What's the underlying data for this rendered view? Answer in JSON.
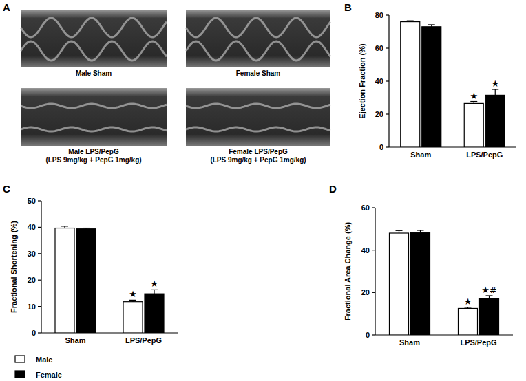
{
  "images": {
    "panel": "A",
    "items": [
      {
        "caption": [
          "Male Sham"
        ]
      },
      {
        "caption": [
          "Female Sham"
        ]
      },
      {
        "caption": [
          "Male LPS/PepG",
          "(LPS 9mg/kg + PepG 1mg/kg)"
        ]
      },
      {
        "caption": [
          "Female LPS/PepG",
          "(LPS 9mg/kg + PepG 1mg/kg)"
        ]
      }
    ]
  },
  "chart_data": [
    {
      "panel": "B",
      "type": "bar",
      "ylabel": "Ejection Fraction (%)",
      "categories": [
        "Sham",
        "LPS/PepG"
      ],
      "series": [
        {
          "name": "Male",
          "color": "#ffffff",
          "values": [
            76,
            26.5
          ],
          "errors": [
            0.6,
            1.2
          ],
          "annotations": [
            null,
            "★"
          ]
        },
        {
          "name": "Female",
          "color": "#000000",
          "values": [
            73,
            31.5
          ],
          "errors": [
            1.2,
            3.5
          ],
          "annotations": [
            null,
            "★"
          ]
        }
      ],
      "ylim": [
        0,
        80
      ],
      "yticks": [
        0,
        20,
        40,
        60,
        80
      ]
    },
    {
      "panel": "C",
      "type": "bar",
      "ylabel": "Fractional Shortening (%)",
      "categories": [
        "Sham",
        "LPS/PepG"
      ],
      "series": [
        {
          "name": "Male",
          "color": "#ffffff",
          "values": [
            39.7,
            11.8
          ],
          "errors": [
            0.7,
            0.6
          ],
          "annotations": [
            null,
            "★"
          ]
        },
        {
          "name": "Female",
          "color": "#000000",
          "values": [
            39.4,
            14.8
          ],
          "errors": [
            0.3,
            1.5
          ],
          "annotations": [
            null,
            "★"
          ]
        }
      ],
      "ylim": [
        0,
        50
      ],
      "yticks": [
        0,
        10,
        20,
        30,
        40,
        50
      ],
      "legend": "bottom left"
    },
    {
      "panel": "D",
      "type": "bar",
      "ylabel": "Fractional Area Change (%)",
      "categories": [
        "Sham",
        "LPS/PepG"
      ],
      "series": [
        {
          "name": "Male",
          "color": "#ffffff",
          "values": [
            48,
            12.5
          ],
          "errors": [
            1.2,
            0.5
          ],
          "annotations": [
            null,
            "★"
          ]
        },
        {
          "name": "Female",
          "color": "#000000",
          "values": [
            48.3,
            17.3
          ],
          "errors": [
            1,
            1.2
          ],
          "annotations": [
            null,
            "★#"
          ]
        }
      ],
      "ylim": [
        0,
        60
      ],
      "yticks": [
        0,
        20,
        40,
        60
      ]
    }
  ]
}
